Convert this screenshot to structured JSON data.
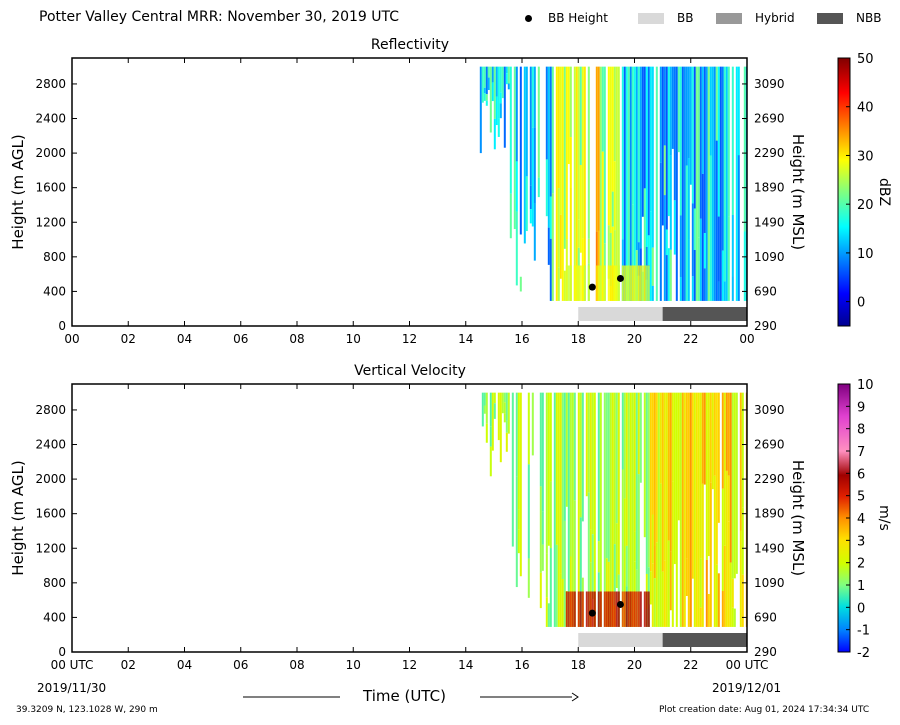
{
  "header": {
    "title": "Potter Valley Central MRR:  November 30, 2019 UTC",
    "legend": [
      {
        "label": "BB Height",
        "kind": "dot",
        "color": "#000000"
      },
      {
        "label": "BB",
        "kind": "swatch",
        "color": "#d9d9d9"
      },
      {
        "label": "Hybrid",
        "kind": "swatch",
        "color": "#999999"
      },
      {
        "label": "NBB",
        "kind": "swatch",
        "color": "#555555"
      }
    ]
  },
  "footer": {
    "location": "39.3209 N, 123.1028 W, 290 m",
    "creation": "Plot creation date: Aug 01, 2024 17:34:34 UTC",
    "time_label": "Time (UTC)",
    "start_date": "2019/11/30",
    "end_date": "2019/12/01"
  },
  "chart_data": [
    {
      "type": "heatmap",
      "title": "Reflectivity",
      "xlabel": "",
      "ylabel": "Height (m AGL)",
      "ylabel_right": "Height (m MSL)",
      "x_ticks": [
        "00",
        "02",
        "04",
        "06",
        "08",
        "10",
        "12",
        "14",
        "16",
        "18",
        "20",
        "22",
        "00"
      ],
      "xlim_hours": [
        0,
        24
      ],
      "y_ticks": [
        0,
        400,
        800,
        1200,
        1600,
        2000,
        2400,
        2800
      ],
      "ylim": [
        0,
        3100
      ],
      "y_right_ticks": [
        290,
        690,
        1090,
        1490,
        1890,
        2290,
        2690,
        3090
      ],
      "colorbar": {
        "label": "dBZ",
        "ticks": [
          0,
          10,
          20,
          30,
          40,
          50
        ],
        "range": [
          -5,
          50
        ]
      },
      "echo_start_hour": 14.5,
      "echo_top_m": 3000,
      "echo_base_m": 290,
      "bb_height_points": [
        {
          "hour": 18.5,
          "height_m": 450
        },
        {
          "hour": 19.5,
          "height_m": 550
        }
      ],
      "bb_classification": [
        {
          "type": "BB",
          "start_hour": 18.0,
          "end_hour": 21.0
        },
        {
          "type": "NBB",
          "start_hour": 21.0,
          "end_hour": 24.0
        }
      ]
    },
    {
      "type": "heatmap",
      "title": "Vertical Velocity",
      "xlabel": "Time (UTC)",
      "ylabel": "Height (m AGL)",
      "ylabel_right": "Height (m MSL)",
      "x_ticks": [
        "00 UTC",
        "02",
        "04",
        "06",
        "08",
        "10",
        "12",
        "14",
        "16",
        "18",
        "20",
        "22",
        "00 UTC"
      ],
      "xlim_hours": [
        0,
        24
      ],
      "y_ticks": [
        0,
        400,
        800,
        1200,
        1600,
        2000,
        2400,
        2800
      ],
      "ylim": [
        0,
        3100
      ],
      "y_right_ticks": [
        290,
        690,
        1090,
        1490,
        1890,
        2290,
        2690,
        3090
      ],
      "colorbar": {
        "label": "m/s",
        "ticks": [
          -2,
          -1,
          0,
          1,
          2,
          3,
          4,
          5,
          6,
          7,
          8,
          9,
          10
        ],
        "range": [
          -2,
          10
        ]
      },
      "echo_start_hour": 14.5,
      "echo_top_m": 3000,
      "echo_base_m": 290,
      "bb_height_points": [
        {
          "hour": 18.5,
          "height_m": 450
        },
        {
          "hour": 19.5,
          "height_m": 550
        }
      ],
      "bb_classification": [
        {
          "type": "BB",
          "start_hour": 18.0,
          "end_hour": 21.0
        },
        {
          "type": "NBB",
          "start_hour": 21.0,
          "end_hour": 24.0
        }
      ]
    }
  ]
}
